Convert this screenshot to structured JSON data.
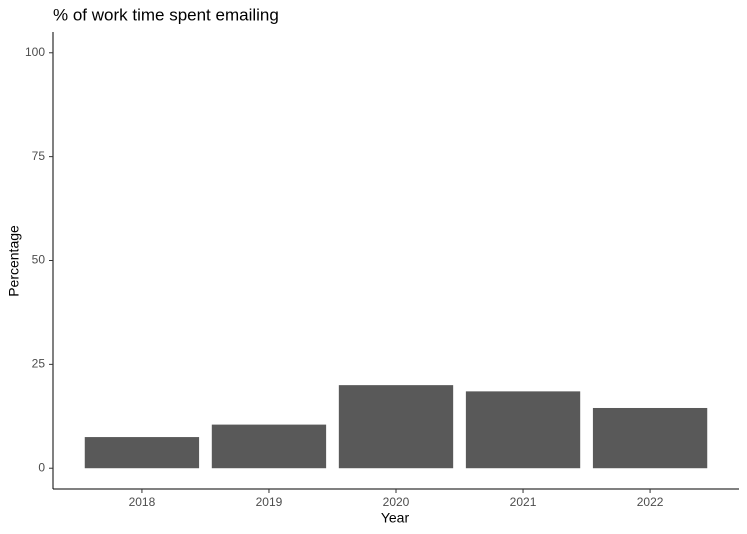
{
  "chart_data": {
    "type": "bar",
    "title": "% of work time spent emailing",
    "x_label": "Year",
    "y_label": "Percentage",
    "categories": [
      "2018",
      "2019",
      "2020",
      "2021",
      "2022"
    ],
    "values": [
      7.5,
      10.5,
      20,
      18.5,
      14.5
    ],
    "color": "#595959",
    "ylim": [
      -5,
      105
    ],
    "yticks": [
      0,
      25,
      50,
      75,
      100
    ],
    "grid": false
  }
}
